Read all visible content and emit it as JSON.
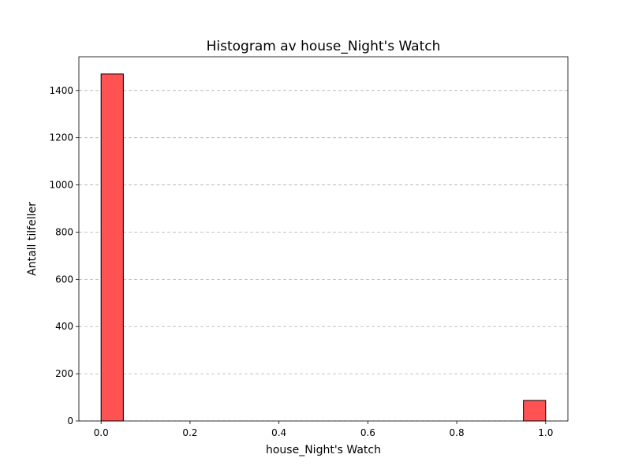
{
  "chart_data": {
    "type": "bar",
    "title": "Histogram av house_Night's Watch",
    "xlabel": "house_Night's Watch",
    "ylabel": "Antall tilfeller",
    "bins": [
      {
        "x0": 0.0,
        "x1": 0.05,
        "count": 1470
      },
      {
        "x0": 0.95,
        "x1": 1.0,
        "count": 87
      }
    ],
    "xlim": [
      -0.05,
      1.05
    ],
    "ylim": [
      0,
      1543
    ],
    "xticks": [
      {
        "value": 0.0,
        "label": "0.0"
      },
      {
        "value": 0.2,
        "label": "0.2"
      },
      {
        "value": 0.4,
        "label": "0.4"
      },
      {
        "value": 0.6,
        "label": "0.6"
      },
      {
        "value": 0.8,
        "label": "0.8"
      },
      {
        "value": 1.0,
        "label": "1.0"
      }
    ],
    "yticks": [
      {
        "value": 0,
        "label": "0"
      },
      {
        "value": 200,
        "label": "200"
      },
      {
        "value": 400,
        "label": "400"
      },
      {
        "value": 600,
        "label": "600"
      },
      {
        "value": 800,
        "label": "800"
      },
      {
        "value": 1000,
        "label": "1000"
      },
      {
        "value": 1200,
        "label": "1200"
      },
      {
        "value": 1400,
        "label": "1400"
      }
    ],
    "grid": "y-dashed",
    "bar_color": "#ff5252",
    "bar_edge_color": "#000000",
    "grid_color": "#b0b0b0"
  }
}
